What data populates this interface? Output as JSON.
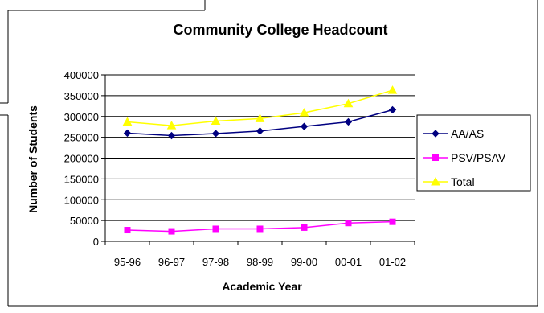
{
  "chart_data": {
    "type": "line",
    "title": "Community College Headcount",
    "xlabel": "Academic Year",
    "ylabel": "Number of Students",
    "categories": [
      "95-96",
      "96-97",
      "97-98",
      "98-99",
      "99-00",
      "00-01",
      "01-02"
    ],
    "ylim": [
      0,
      400000
    ],
    "yticks": [
      0,
      50000,
      100000,
      150000,
      200000,
      250000,
      300000,
      350000,
      400000
    ],
    "grid": true,
    "legend_position": "right",
    "series": [
      {
        "name": "AA/AS",
        "color": "#000080",
        "marker": "diamond",
        "values": [
          260000,
          254000,
          259000,
          265000,
          276000,
          287000,
          316000
        ]
      },
      {
        "name": "PSV/PSAV",
        "color": "#ff00ff",
        "marker": "square",
        "values": [
          27000,
          24000,
          30000,
          30000,
          33000,
          44000,
          47000
        ]
      },
      {
        "name": "Total",
        "color": "#ffff00",
        "marker": "triangle",
        "values": [
          287000,
          278000,
          289000,
          295000,
          309000,
          331000,
          363000
        ]
      }
    ]
  }
}
